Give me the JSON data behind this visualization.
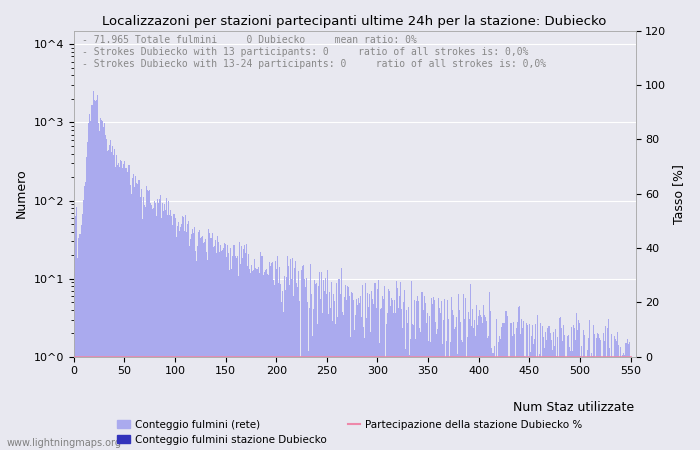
{
  "title": "Localizzazoni per stazioni partecipanti ultime 24h per la stazione: Dubiecko",
  "annotation_lines": [
    "71.965 Totale fulmini     0 Dubiecko     mean ratio: 0%",
    "Strokes Dubiecko with 13 participants: 0     ratio of all strokes is: 0,0%",
    "Strokes Dubiecko with 13-24 participants: 0     ratio of all strokes is: 0,0%"
  ],
  "ylabel_left": "Numero",
  "ylabel_right": "Tasso [%]",
  "xlabel": "Num Staz utilizzate",
  "xlim": [
    0,
    555
  ],
  "ylim_left": [
    1,
    15000
  ],
  "ylim_right": [
    0,
    120
  ],
  "yticks_left_vals": [
    1,
    10,
    100,
    1000,
    10000
  ],
  "yticks_left_labels": [
    "10^0",
    "10^1",
    "10^2",
    "10^3",
    "10^4"
  ],
  "yticks_right": [
    0,
    20,
    40,
    60,
    80,
    100,
    120
  ],
  "xticks": [
    0,
    50,
    100,
    150,
    200,
    250,
    300,
    350,
    400,
    450,
    500,
    550
  ],
  "bar_color_main": "#aaaaee",
  "bar_color_station": "#3333bb",
  "line_color": "#ee88aa",
  "background_color": "#e8e8f0",
  "grid_color": "#ffffff",
  "legend_labels": [
    "Conteggio fulmini (rete)",
    "Conteggio fulmini stazione Dubiecko",
    "Partecipazione della stazione Dubiecko %"
  ],
  "watermark": "www.lightningmaps.org",
  "num_bins": 550,
  "annotation_color": "#888888",
  "title_fontsize": 9.5,
  "axis_fontsize": 8,
  "annotation_fontsize": 7,
  "legend_fontsize": 7.5
}
